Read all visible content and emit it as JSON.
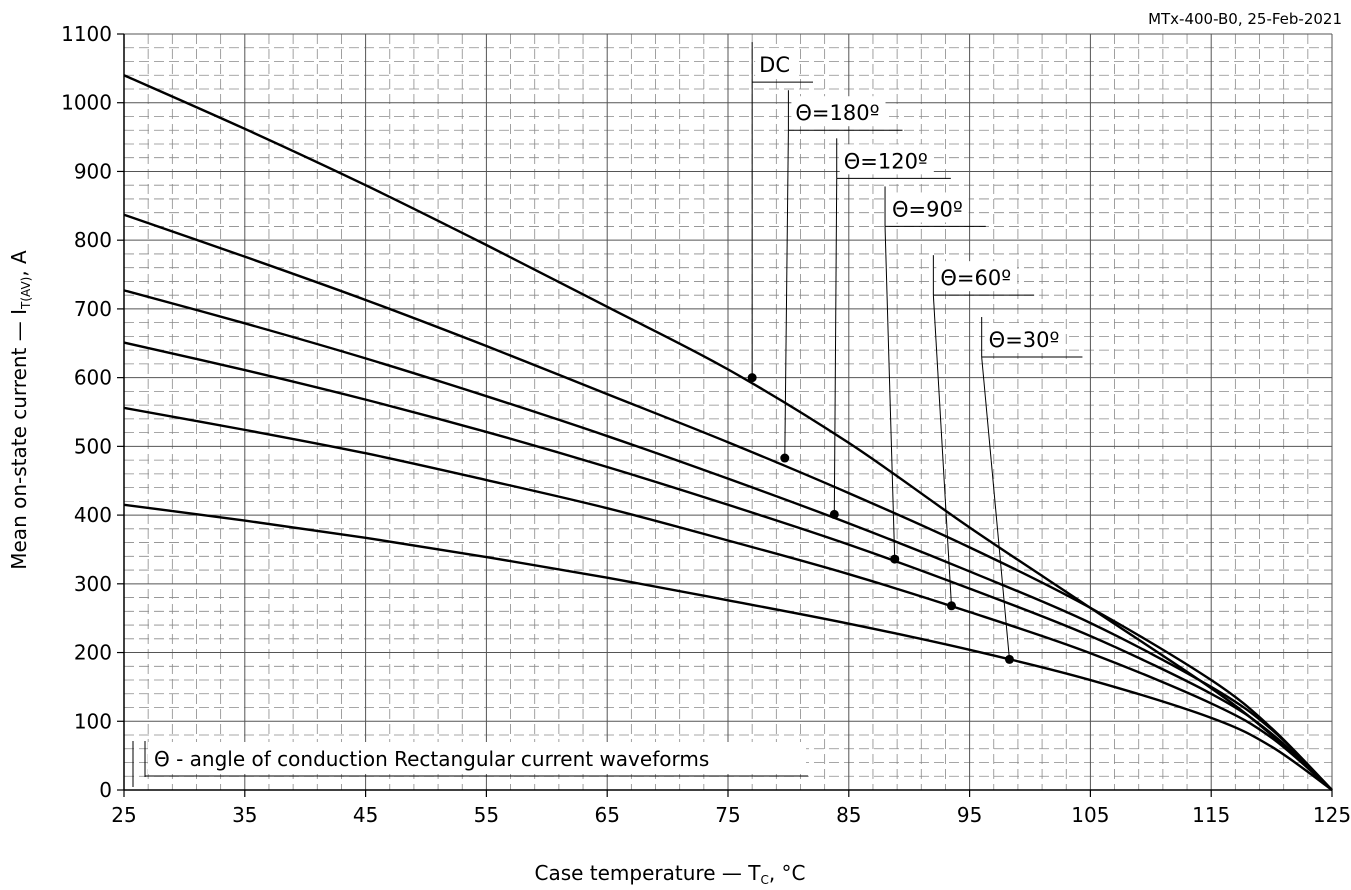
{
  "doc_id": "MTx-400-B0, 25-Feb-2021",
  "chart_data": {
    "type": "line",
    "xlabel": {
      "main": "Case temperature — T",
      "sub": "C",
      "unit": ", °C"
    },
    "ylabel": {
      "main": "Mean on-state current — I",
      "sub": "T(AV)",
      "unit": ", A"
    },
    "xlim": [
      25,
      125
    ],
    "ylim": [
      0,
      1100
    ],
    "x_major_step": 10,
    "y_major_step": 100,
    "grid": true,
    "x_ticks": [
      "25",
      "35",
      "45",
      "55",
      "65",
      "75",
      "85",
      "95",
      "105",
      "115",
      "125"
    ],
    "y_ticks": [
      "0",
      "100",
      "200",
      "300",
      "400",
      "500",
      "600",
      "700",
      "800",
      "900",
      "1000",
      "1100"
    ],
    "note": "Θ - angle of conduction Rectangular current waveforms",
    "series": [
      {
        "name": "DC",
        "marker": [
          77,
          600
        ],
        "label_at": [
          77,
          1030
        ],
        "x": [
          25,
          35,
          45,
          55,
          65,
          75,
          85,
          95,
          105,
          115,
          120,
          125
        ],
        "y": [
          1040,
          962,
          880,
          793,
          703,
          612,
          505,
          382,
          265,
          148,
          80,
          0
        ]
      },
      {
        "name": "Θ=180º",
        "marker": [
          79.7,
          483
        ],
        "label_at": [
          80,
          960
        ],
        "x": [
          25,
          35,
          45,
          55,
          65,
          75,
          85,
          95,
          105,
          115,
          120,
          125
        ],
        "y": [
          837,
          776,
          713,
          646,
          576,
          506,
          432,
          353,
          265,
          160,
          90,
          0
        ]
      },
      {
        "name": "Θ=120º",
        "marker": [
          83.8,
          401
        ],
        "label_at": [
          84,
          890
        ],
        "x": [
          25,
          35,
          45,
          55,
          65,
          75,
          85,
          95,
          105,
          115,
          120,
          125
        ],
        "y": [
          727,
          679,
          628,
          573,
          515,
          453,
          388,
          318,
          243,
          150,
          88,
          0
        ]
      },
      {
        "name": "Θ=90º",
        "marker": [
          88.8,
          336
        ],
        "label_at": [
          88,
          820
        ],
        "x": [
          25,
          35,
          45,
          55,
          65,
          75,
          85,
          95,
          105,
          115,
          120,
          125
        ],
        "y": [
          651,
          611,
          568,
          521,
          470,
          415,
          357,
          293,
          224,
          140,
          82,
          0
        ]
      },
      {
        "name": "Θ=60º",
        "marker": [
          93.5,
          268
        ],
        "label_at": [
          92,
          720
        ],
        "x": [
          25,
          35,
          45,
          55,
          65,
          75,
          85,
          95,
          105,
          115,
          120,
          125
        ],
        "y": [
          556,
          524,
          490,
          451,
          410,
          363,
          314,
          259,
          199,
          126,
          76,
          0
        ]
      },
      {
        "name": "Θ=30º",
        "marker": [
          98.3,
          190
        ],
        "label_at": [
          96,
          630
        ],
        "x": [
          25,
          35,
          45,
          55,
          65,
          75,
          85,
          95,
          105,
          115,
          120,
          125
        ],
        "y": [
          415,
          392,
          367,
          339,
          309,
          276,
          242,
          204,
          160,
          105,
          63,
          0
        ]
      }
    ]
  }
}
